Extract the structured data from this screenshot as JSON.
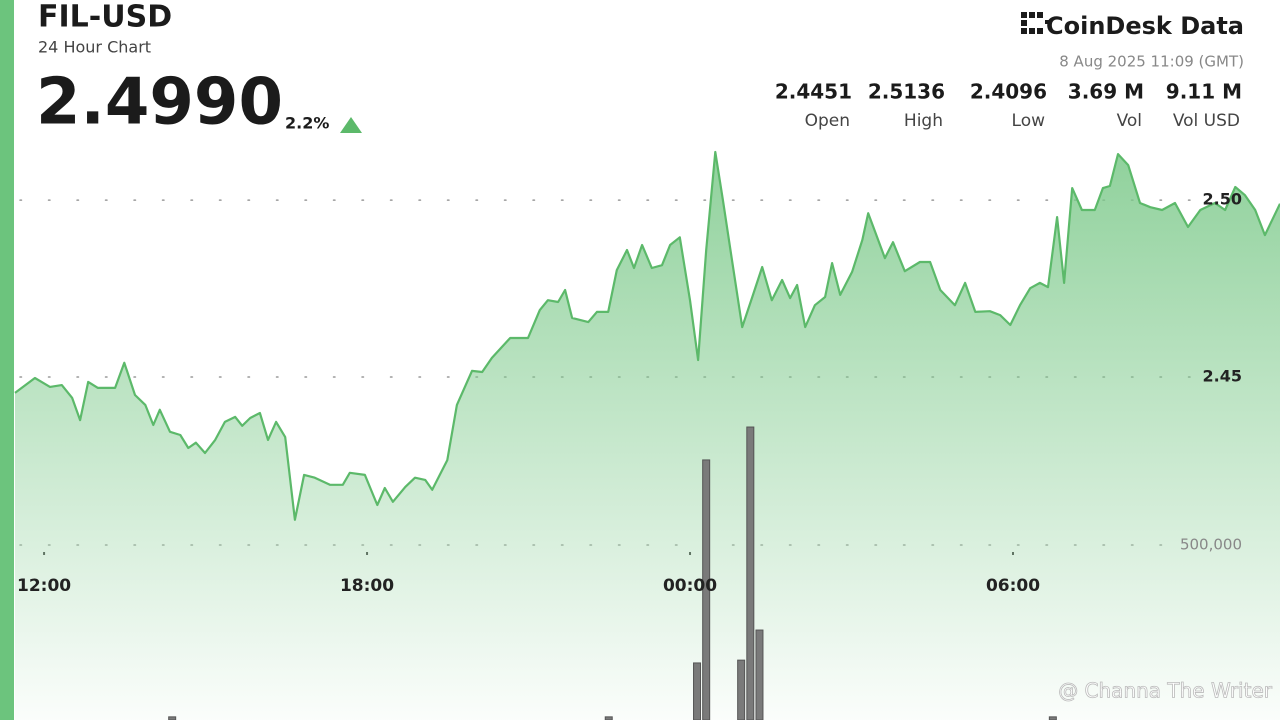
{
  "header": {
    "title": "FIL-USD",
    "subtitle": "24 Hour Chart",
    "price": "2.4990",
    "change": "2.2%",
    "brand": "CoinDesk Data",
    "timestamp": "8 Aug 2025 11:09 (GMT)",
    "stats": [
      {
        "value": "2.4451",
        "label": "Open"
      },
      {
        "value": "2.5136",
        "label": "High"
      },
      {
        "value": "2.4096",
        "label": "Low"
      },
      {
        "value": "3.69 M",
        "label": "Vol"
      },
      {
        "value": "9.11 M",
        "label": "Vol USD"
      }
    ]
  },
  "chart_data": {
    "type": "line",
    "xlim": [
      11.46,
      34.96
    ],
    "xticks": [
      {
        "value": 12,
        "label": "12:00"
      },
      {
        "value": 18,
        "label": "18:00"
      },
      {
        "value": 24,
        "label": "00:00"
      },
      {
        "value": 30,
        "label": "06:00"
      }
    ],
    "ylim": [
      2.353,
      2.517
    ],
    "yticks": [
      {
        "value": 2.5,
        "label": "2.50"
      },
      {
        "value": 2.45,
        "label": "2.45"
      }
    ],
    "y2lim": [
      0,
      1657000
    ],
    "y2ticks": [
      {
        "value": 500000,
        "label": "500,000"
      }
    ],
    "grid": true,
    "series": [
      {
        "type": "line",
        "color": "#5cb96a",
        "x": [
          11.46,
          11.83,
          12.11,
          12.33,
          12.52,
          12.67,
          12.82,
          13.0,
          13.32,
          13.49,
          13.69,
          13.88,
          14.03,
          14.15,
          14.34,
          14.53,
          14.68,
          14.82,
          14.99,
          15.18,
          15.36,
          15.55,
          15.68,
          15.83,
          16.01,
          16.16,
          16.31,
          16.48,
          16.66,
          16.83,
          17.03,
          17.31,
          17.55,
          17.68,
          17.96,
          18.19,
          18.33,
          18.48,
          18.71,
          18.89,
          19.08,
          19.21,
          19.49,
          19.67,
          19.95,
          20.14,
          20.32,
          20.66,
          20.99,
          21.21,
          21.36,
          21.55,
          21.68,
          21.81,
          22.11,
          22.27,
          22.48,
          22.64,
          22.83,
          22.96,
          23.11,
          23.29,
          23.48,
          23.63,
          23.81,
          24.0,
          24.15,
          24.3,
          24.47,
          24.61,
          24.78,
          24.97,
          25.17,
          25.34,
          25.52,
          25.71,
          25.86,
          25.99,
          26.14,
          26.32,
          26.51,
          26.64,
          26.79,
          27.01,
          27.2,
          27.31,
          27.44,
          27.62,
          27.77,
          27.99,
          28.27,
          28.46,
          28.65,
          28.92,
          29.11,
          29.3,
          29.57,
          29.76,
          29.95,
          30.13,
          30.32,
          30.5,
          30.65,
          30.82,
          30.95,
          31.1,
          31.28,
          31.52,
          31.67,
          31.8,
          31.95,
          32.14,
          32.36,
          32.55,
          32.77,
          33.01,
          33.25,
          33.48,
          33.75,
          33.94,
          34.13,
          34.31,
          34.5,
          34.68,
          34.96
        ],
        "values": [
          2.4455,
          2.4497,
          2.4472,
          2.4477,
          2.4441,
          2.4378,
          2.4486,
          2.4469,
          2.4469,
          2.454,
          2.4449,
          2.4421,
          2.4364,
          2.4407,
          2.4345,
          2.4336,
          2.4299,
          2.4314,
          2.4285,
          2.4322,
          2.4373,
          2.4387,
          2.4362,
          2.4384,
          2.4398,
          2.4322,
          2.4373,
          2.433,
          2.4096,
          2.4223,
          2.4215,
          2.4195,
          2.4195,
          2.4229,
          2.4223,
          2.4138,
          2.4186,
          2.4147,
          2.4189,
          2.4215,
          2.4209,
          2.4181,
          2.4265,
          2.4421,
          2.4517,
          2.4514,
          2.4554,
          2.461,
          2.461,
          2.4689,
          2.4717,
          2.4712,
          2.4746,
          2.4667,
          2.4655,
          2.4684,
          2.4684,
          2.4802,
          2.4859,
          2.4808,
          2.4873,
          2.4808,
          2.4816,
          2.4873,
          2.4895,
          2.4717,
          2.4548,
          2.4859,
          2.5136,
          2.5,
          2.483,
          2.4641,
          2.4732,
          2.4811,
          2.4717,
          2.4774,
          2.4723,
          2.476,
          2.4641,
          2.4703,
          2.4726,
          2.4822,
          2.4732,
          2.4797,
          2.4887,
          2.4963,
          2.491,
          2.4836,
          2.4881,
          2.4799,
          2.4825,
          2.4825,
          2.4746,
          2.4703,
          2.4766,
          2.4684,
          2.4686,
          2.4675,
          2.4647,
          2.4703,
          2.4751,
          2.4766,
          2.4754,
          2.4952,
          2.4766,
          2.5034,
          2.4972,
          2.4972,
          2.5034,
          2.504,
          2.513,
          2.5099,
          2.4992,
          2.498,
          2.4972,
          2.4992,
          2.4924,
          2.4972,
          2.4992,
          2.4972,
          2.5037,
          2.5014,
          2.4972,
          2.4901,
          2.499
        ]
      },
      {
        "type": "bar",
        "axis": "y2",
        "color": "#7a7a7a",
        "x": [
          14.38,
          22.49,
          24.13,
          24.3,
          24.95,
          25.12,
          25.29,
          30.74
        ],
        "values": [
          9000,
          9000,
          163000,
          743000,
          171000,
          837000,
          257000,
          9000
        ]
      }
    ]
  },
  "watermark": "@ Channa The Writer"
}
